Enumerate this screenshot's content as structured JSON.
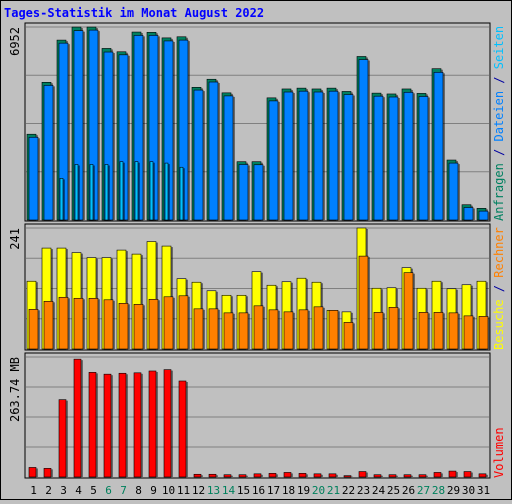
{
  "chart_data": {
    "type": "bar",
    "title": "Tages-Statistik im Monat August 2022",
    "categories": [
      "1",
      "2",
      "3",
      "4",
      "5",
      "6",
      "7",
      "8",
      "9",
      "10",
      "11",
      "12",
      "13",
      "14",
      "15",
      "16",
      "17",
      "18",
      "19",
      "20",
      "21",
      "22",
      "23",
      "24",
      "25",
      "26",
      "27",
      "28",
      "29",
      "30",
      "31"
    ],
    "weekend_days": [
      "6",
      "7",
      "13",
      "14",
      "20",
      "21",
      "27",
      "28"
    ],
    "panels": [
      {
        "id": "top",
        "max_label": "6952",
        "ymax": 6952,
        "series": [
          {
            "name": "Anfragen",
            "color": "#008060",
            "values": [
              3090,
              4960,
              6480,
              6950,
              6950,
              6180,
              6060,
              6770,
              6760,
              6560,
              6600,
              4780,
              5070,
              4580,
              2100,
              2100,
              4400,
              4720,
              4750,
              4720,
              4750,
              4630,
              5890,
              4570,
              4540,
              4720,
              4560,
              5450,
              2160,
              550,
              420
            ]
          },
          {
            "name": "Dateien",
            "color": "#0080ff",
            "values": [
              2980,
              4850,
              6370,
              6820,
              6840,
              6050,
              5950,
              6650,
              6650,
              6450,
              6480,
              4680,
              4970,
              4470,
              2000,
              1990,
              4290,
              4610,
              4640,
              4610,
              4640,
              4520,
              5780,
              4460,
              4430,
              4600,
              4450,
              5320,
              2050,
              450,
              320
            ]
          },
          {
            "name": "Seiten",
            "color": "#00c0ff",
            "values": [
              0,
              0,
              1500,
              2000,
              2000,
              2000,
              2100,
              2100,
              2100,
              2050,
              1900,
              0,
              0,
              0,
              0,
              0,
              0,
              0,
              0,
              0,
              0,
              0,
              0,
              0,
              0,
              0,
              0,
              0,
              0,
              0,
              0
            ]
          }
        ]
      },
      {
        "id": "middle",
        "max_label": "241",
        "ymax": 241,
        "series": [
          {
            "name": "Besuche",
            "color": "#ffff00",
            "values": [
              135,
              201,
              201,
              192,
              182,
              182,
              197,
              189,
              214,
              205,
              140,
              133,
              116,
              107,
              107,
              154,
              127,
              134,
              141,
              133,
              77,
              74,
              241,
              121,
              122,
              162,
              121,
              135,
              120,
              128,
              135
            ]
          },
          {
            "name": "Rechner",
            "color": "#ff8000",
            "values": [
              79,
              95,
              103,
              101,
              101,
              98,
              91,
              89,
              99,
              104,
              106,
              80,
              80,
              72,
              72,
              86,
              78,
              74,
              78,
              84,
              77,
              53,
              185,
              73,
              83,
              152,
              73,
              73,
              72,
              66,
              65
            ]
          }
        ]
      },
      {
        "id": "bottom",
        "max_label": "263.74 MB",
        "ymax": 263.74,
        "series": [
          {
            "name": "Volumen",
            "color": "#ff0000",
            "values": [
              21,
              19,
              170,
              259,
              230,
              226,
              228,
              229,
              233,
              236,
              211,
              6,
              6,
              5,
              5,
              7,
              8,
              10,
              8,
              7,
              7,
              3,
              12,
              5,
              5,
              5,
              5,
              10,
              13,
              12,
              7
            ]
          }
        ]
      }
    ],
    "right_axis_labels": {
      "top": [
        {
          "text": "Anfragen",
          "color": "#008060"
        },
        {
          "text": " / ",
          "color": "#0000a0"
        },
        {
          "text": "Dateien",
          "color": "#0080ff"
        },
        {
          "text": " / ",
          "color": "#0000a0"
        },
        {
          "text": "Seiten",
          "color": "#00c0ff"
        }
      ],
      "middle": [
        {
          "text": "Besuche",
          "color": "#ffff00"
        },
        {
          "text": " / ",
          "color": "#0000a0"
        },
        {
          "text": "Rechner",
          "color": "#ff8000"
        }
      ],
      "bottom": [
        {
          "text": "Volumen",
          "color": "#ff0000"
        }
      ]
    },
    "colors": {
      "background": "#c0c0c0",
      "title": "#0000ff",
      "weekday_label": "#000000",
      "weekend_label": "#00805c"
    }
  }
}
